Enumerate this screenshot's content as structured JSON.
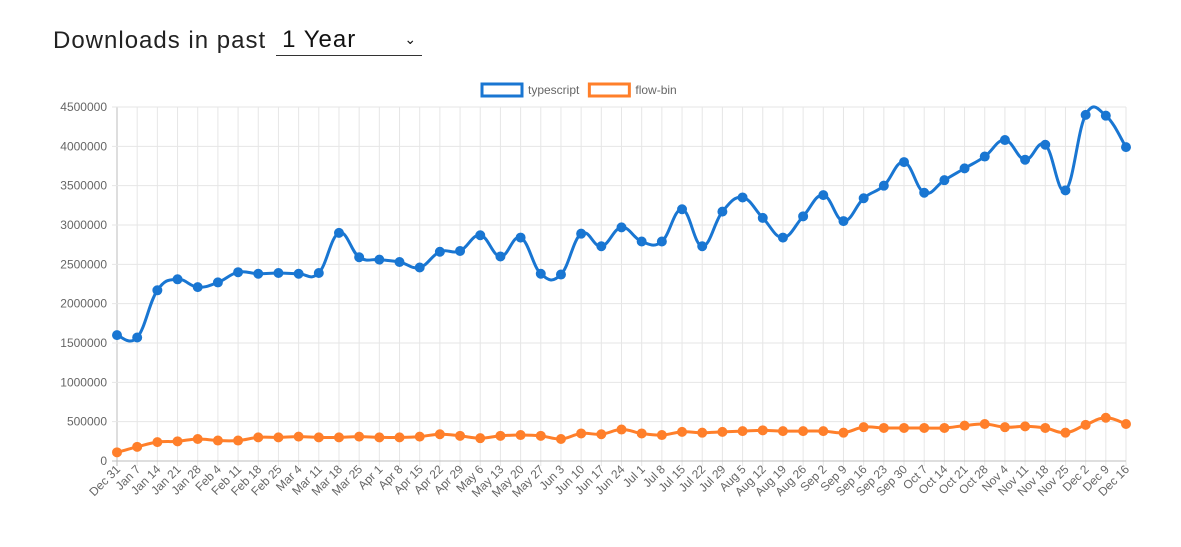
{
  "header": {
    "label": "Downloads in past",
    "period_value": "1 Year",
    "period_icon": "chevron-down-icon"
  },
  "chart_data": {
    "type": "line",
    "title": "",
    "xlabel": "",
    "ylabel": "",
    "ylim": [
      0,
      4500000
    ],
    "yticks": [
      0,
      500000,
      1000000,
      1500000,
      2000000,
      2500000,
      3000000,
      3500000,
      4000000,
      4500000
    ],
    "grid": true,
    "legend_position": "top-center",
    "categories": [
      "Dec 31",
      "Jan 7",
      "Jan 14",
      "Jan 21",
      "Jan 28",
      "Feb 4",
      "Feb 11",
      "Feb 18",
      "Feb 25",
      "Mar 4",
      "Mar 11",
      "Mar 18",
      "Mar 25",
      "Apr 1",
      "Apr 8",
      "Apr 15",
      "Apr 22",
      "Apr 29",
      "May 6",
      "May 13",
      "May 20",
      "May 27",
      "Jun 3",
      "Jun 10",
      "Jun 17",
      "Jun 24",
      "Jul 1",
      "Jul 8",
      "Jul 15",
      "Jul 22",
      "Jul 29",
      "Aug 5",
      "Aug 12",
      "Aug 19",
      "Aug 26",
      "Sep 2",
      "Sep 9",
      "Sep 16",
      "Sep 23",
      "Sep 30",
      "Oct 7",
      "Oct 14",
      "Oct 21",
      "Oct 28",
      "Nov 4",
      "Nov 11",
      "Nov 18",
      "Nov 25",
      "Dec 2",
      "Dec 9",
      "Dec 16"
    ],
    "series": [
      {
        "name": "typescript",
        "color": "#1976d2",
        "values": [
          1600000,
          1570000,
          2170000,
          2310000,
          2210000,
          2270000,
          2400000,
          2380000,
          2390000,
          2380000,
          2390000,
          2900000,
          2590000,
          2560000,
          2530000,
          2460000,
          2660000,
          2670000,
          2870000,
          2600000,
          2840000,
          2380000,
          2370000,
          2890000,
          2730000,
          2970000,
          2790000,
          2790000,
          3200000,
          2730000,
          3170000,
          3350000,
          3090000,
          2840000,
          3110000,
          3380000,
          3050000,
          3340000,
          3500000,
          3800000,
          3410000,
          3570000,
          3720000,
          3870000,
          4080000,
          3830000,
          4020000,
          3440000,
          4400000,
          4390000,
          3990000
        ]
      },
      {
        "name": "flow-bin",
        "color": "#ff7f2a",
        "values": [
          110000,
          180000,
          240000,
          250000,
          280000,
          260000,
          260000,
          300000,
          300000,
          310000,
          300000,
          300000,
          310000,
          300000,
          300000,
          310000,
          340000,
          320000,
          290000,
          320000,
          330000,
          320000,
          280000,
          350000,
          340000,
          400000,
          350000,
          330000,
          370000,
          360000,
          370000,
          380000,
          390000,
          380000,
          380000,
          380000,
          360000,
          430000,
          420000,
          420000,
          420000,
          420000,
          450000,
          470000,
          430000,
          440000,
          420000,
          360000,
          460000,
          550000,
          470000
        ]
      }
    ]
  }
}
